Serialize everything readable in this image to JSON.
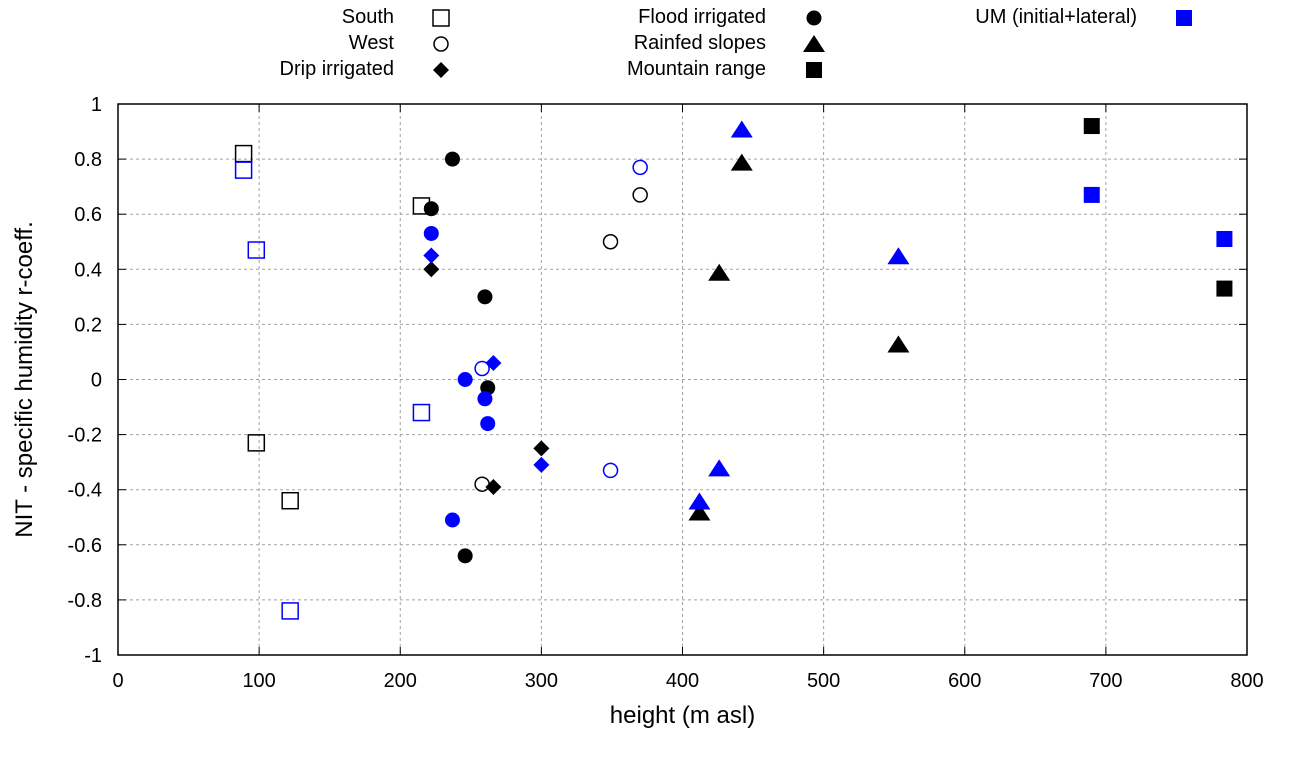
{
  "chart_data": {
    "type": "scatter",
    "title": "",
    "xlabel": "height (m asl)",
    "ylabel": "NIT - specific humidity r-coeff.",
    "xlim": [
      0,
      800
    ],
    "ylim": [
      -1,
      1
    ],
    "xticks": [
      0,
      100,
      200,
      300,
      400,
      500,
      600,
      700,
      800
    ],
    "yticks": [
      -1,
      -0.8,
      -0.6,
      -0.4,
      -0.2,
      0,
      0.2,
      0.4,
      0.6,
      0.8,
      1
    ],
    "grid": true,
    "legend_position": "top (outside plot)",
    "colors": {
      "observed": "#000000",
      "model": "#0000ff"
    },
    "legend": [
      {
        "label": "South",
        "marker": "open-square",
        "color": "#000000"
      },
      {
        "label": "West",
        "marker": "open-circle",
        "color": "#000000"
      },
      {
        "label": "Drip irrigated",
        "marker": "filled-diamond",
        "color": "#000000"
      },
      {
        "label": "Flood irrigated",
        "marker": "filled-circle",
        "color": "#000000"
      },
      {
        "label": "Rainfed slopes",
        "marker": "filled-triangle",
        "color": "#000000"
      },
      {
        "label": "Mountain range",
        "marker": "filled-square",
        "color": "#000000"
      },
      {
        "label": "UM (initial+lateral)",
        "marker": "filled-square",
        "color": "#0000ff"
      }
    ],
    "series": [
      {
        "name": "South",
        "marker": "open-square",
        "color": "#000000",
        "points": [
          [
            89,
            0.82
          ],
          [
            215,
            0.63
          ],
          [
            98,
            -0.23
          ],
          [
            122,
            -0.44
          ]
        ]
      },
      {
        "name": "South (UM)",
        "marker": "open-square",
        "color": "#0000ff",
        "points": [
          [
            89,
            0.76
          ],
          [
            98,
            0.47
          ],
          [
            215,
            -0.12
          ],
          [
            122,
            -0.84
          ]
        ]
      },
      {
        "name": "West",
        "marker": "open-circle",
        "color": "#000000",
        "points": [
          [
            370,
            0.67
          ],
          [
            349,
            0.5
          ],
          [
            258,
            -0.38
          ]
        ]
      },
      {
        "name": "West (UM)",
        "marker": "open-circle",
        "color": "#0000ff",
        "points": [
          [
            370,
            0.77
          ],
          [
            258,
            0.04
          ],
          [
            349,
            -0.33
          ]
        ]
      },
      {
        "name": "Drip irrigated",
        "marker": "filled-diamond",
        "color": "#000000",
        "points": [
          [
            222,
            0.4
          ],
          [
            300,
            -0.25
          ],
          [
            266,
            -0.39
          ]
        ]
      },
      {
        "name": "Drip irrigated (UM)",
        "marker": "filled-diamond",
        "color": "#0000ff",
        "points": [
          [
            222,
            0.45
          ],
          [
            266,
            0.06
          ],
          [
            300,
            -0.31
          ]
        ]
      },
      {
        "name": "Flood irrigated",
        "marker": "filled-circle",
        "color": "#000000",
        "points": [
          [
            237,
            0.8
          ],
          [
            222,
            0.62
          ],
          [
            260,
            0.3
          ],
          [
            262,
            -0.03
          ],
          [
            246,
            -0.64
          ]
        ]
      },
      {
        "name": "Flood irrigated (UM)",
        "marker": "filled-circle",
        "color": "#0000ff",
        "points": [
          [
            222,
            0.53
          ],
          [
            246,
            0.0
          ],
          [
            260,
            -0.07
          ],
          [
            262,
            -0.16
          ],
          [
            237,
            -0.51
          ]
        ]
      },
      {
        "name": "Rainfed slopes",
        "marker": "filled-triangle",
        "color": "#000000",
        "points": [
          [
            442,
            0.78
          ],
          [
            426,
            0.38
          ],
          [
            553,
            0.12
          ],
          [
            412,
            -0.49
          ]
        ]
      },
      {
        "name": "Rainfed slopes (UM)",
        "marker": "filled-triangle",
        "color": "#0000ff",
        "points": [
          [
            442,
            0.9
          ],
          [
            553,
            0.44
          ],
          [
            426,
            -0.33
          ],
          [
            412,
            -0.45
          ]
        ]
      },
      {
        "name": "Mountain range",
        "marker": "filled-square",
        "color": "#000000",
        "points": [
          [
            690,
            0.92
          ],
          [
            784,
            0.33
          ]
        ]
      },
      {
        "name": "Mountain range (UM)",
        "marker": "filled-square",
        "color": "#0000ff",
        "points": [
          [
            690,
            0.67
          ],
          [
            784,
            0.51
          ]
        ]
      }
    ]
  }
}
